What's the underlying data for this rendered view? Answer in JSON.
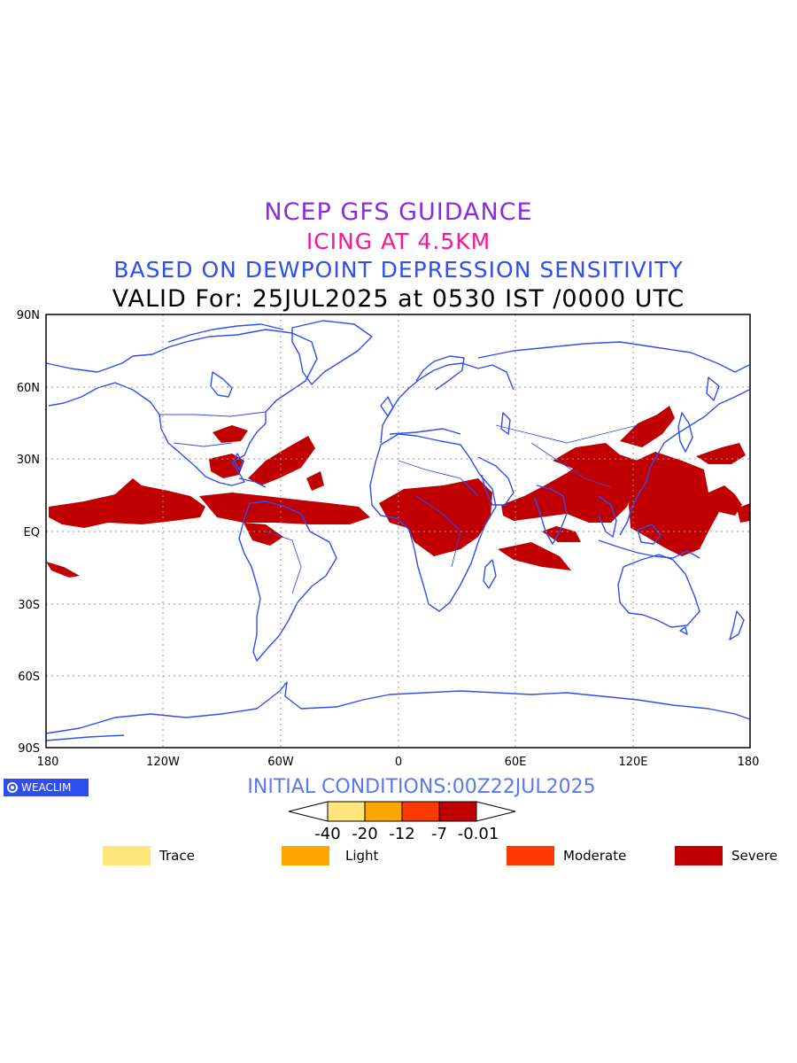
{
  "titles": {
    "line1": "NCEP GFS GUIDANCE",
    "line2": "ICING AT 4.5KM",
    "line3": "BASED ON DEWPOINT DEPRESSION SENSITIVITY",
    "line4": "VALID For: 25JUL2025 at 0530 IST /0000 UTC"
  },
  "axes": {
    "lat_labels": [
      "90N",
      "60N",
      "30N",
      "EQ",
      "30S",
      "60S",
      "90S"
    ],
    "lon_labels": [
      "180",
      "120W",
      "60W",
      "0",
      "60E",
      "120E",
      "180"
    ]
  },
  "badge": {
    "label": "WEACLIM"
  },
  "initial_conditions": "INITIAL CONDITIONS:00Z22JUL2025",
  "colorbar": {
    "tick_labels": [
      "-40",
      "-20",
      "-12",
      "-7",
      "-0.01"
    ],
    "colors": [
      "#ffe57a",
      "#ffa500",
      "#ff3a00",
      "#c00000"
    ]
  },
  "legend": [
    {
      "label": "Trace",
      "color": "#ffe57a"
    },
    {
      "label": "Light",
      "color": "#ffa500"
    },
    {
      "label": "Moderate",
      "color": "#ff3a00"
    },
    {
      "label": "Severe",
      "color": "#c00000"
    }
  ],
  "colors": {
    "coastline": "#2e4ef0",
    "icing_severe": "#c00000",
    "grid": "#999999"
  }
}
